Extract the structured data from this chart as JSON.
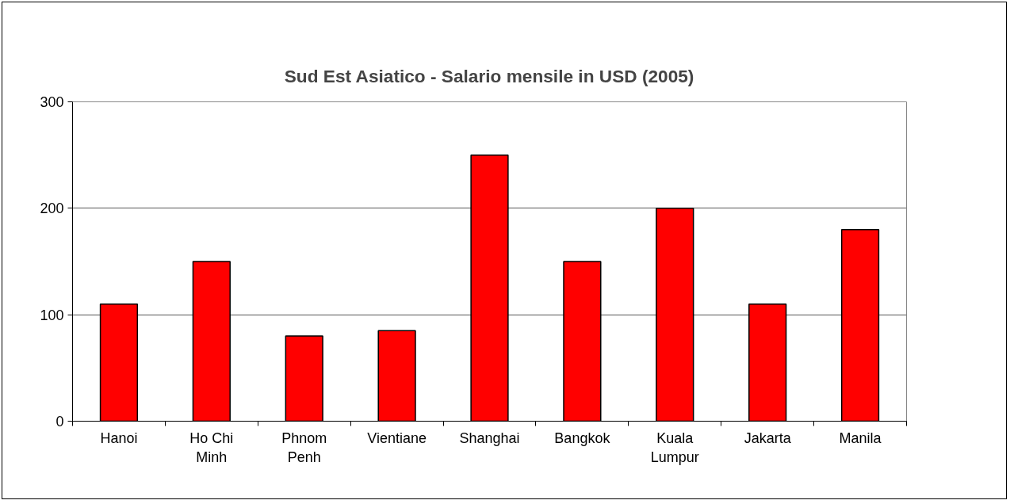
{
  "chart_data": {
    "type": "bar",
    "title": "Sud Est Asiatico - Salario mensile in USD (2005)",
    "categories": [
      "Hanoi",
      "Ho Chi Minh",
      "Phnom Penh",
      "Vientiane",
      "Shanghai",
      "Bangkok",
      "Kuala Lumpur",
      "Jakarta",
      "Manila"
    ],
    "values": [
      110,
      150,
      80,
      85,
      250,
      150,
      200,
      110,
      180
    ],
    "color": "#ff0000",
    "ylim": [
      0,
      300
    ],
    "yticks": [
      0,
      100,
      200,
      300
    ],
    "grid": "y"
  }
}
